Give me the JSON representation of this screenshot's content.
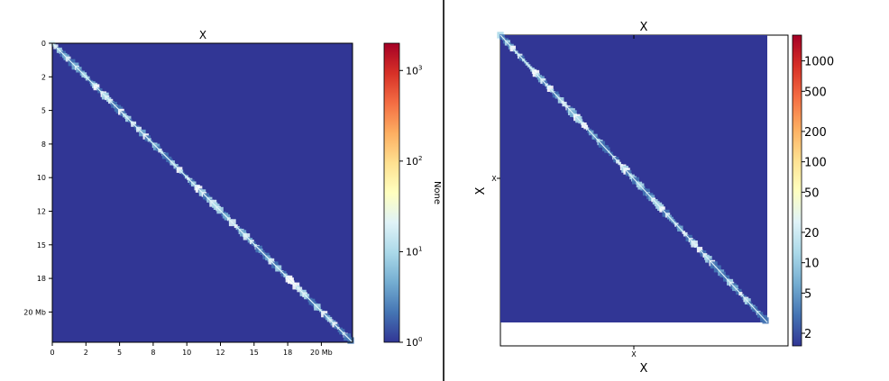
{
  "chart_data": [
    {
      "type": "heatmap",
      "title": "X",
      "xlabel": "",
      "ylabel": "",
      "x_ticks": [
        "0",
        "2",
        "5",
        "8",
        "10",
        "12",
        "15",
        "18",
        "20 Mb"
      ],
      "y_ticks": [
        "0",
        "2",
        "5",
        "8",
        "10",
        "12",
        "15",
        "18",
        "20 Mb"
      ],
      "colorbar": {
        "label": "None",
        "scale": "log",
        "range": [
          1,
          2000
        ],
        "ticks": [
          {
            "value": 1,
            "base": "10",
            "exp": "0"
          },
          {
            "value": 10,
            "base": "10",
            "exp": "1"
          },
          {
            "value": 100,
            "base": "10",
            "exp": "2"
          },
          {
            "value": 1000,
            "base": "10",
            "exp": "3"
          }
        ],
        "colormap": "RdYlBu_r"
      },
      "pattern": "diagonal-dominant contact matrix; off-diagonal values near 1, diagonal values up to ~1000+"
    },
    {
      "type": "heatmap",
      "title": "X",
      "xlabel": "X",
      "ylabel": "X",
      "x_tick_label": "X",
      "y_tick_label": "X",
      "colorbar": {
        "scale": "log",
        "range": [
          1.5,
          1800
        ],
        "ticks": [
          "2",
          "5",
          "10",
          "20",
          "50",
          "100",
          "200",
          "500",
          "1000"
        ],
        "colormap": "RdYlBu_r"
      },
      "pattern": "diagonal-dominant contact matrix; off-diagonal values near 2, diagonal values higher"
    }
  ]
}
